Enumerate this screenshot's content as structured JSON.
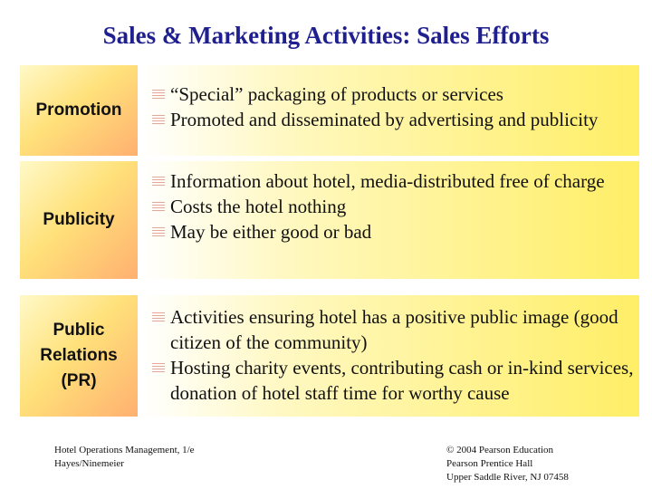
{
  "title": "Sales & Marketing Activities: Sales Efforts",
  "rows": [
    {
      "label": "Promotion",
      "bullets": [
        "“Special” packaging of products or services",
        "Promoted and disseminated by advertising and publicity"
      ]
    },
    {
      "label": "Publicity",
      "bullets": [
        "Information about hotel, media-distributed free of charge",
        "Costs the hotel nothing",
        "May be either good or bad"
      ]
    },
    {
      "label": "Public Relations (PR)",
      "bullets": [
        "Activities ensuring hotel has a positive public image (good citizen of the community)",
        "Hosting charity events, contributing cash or in-kind services, donation of hotel staff time for worthy cause"
      ]
    }
  ],
  "footer": {
    "left": [
      "Hotel Operations Management, 1/e",
      "Hayes/Ninemeier"
    ],
    "right": [
      "© 2004 Pearson Education",
      "Pearson Prentice Hall",
      "Upper Saddle River, NJ 07458"
    ]
  },
  "colors": {
    "title": "#1f1f8f",
    "label_gradient": [
      "#fff9c8",
      "#ffe17a",
      "#ffb070"
    ],
    "content_gradient": [
      "#ffffff",
      "#fff8c0",
      "#ffee66"
    ],
    "bullet_icon": "#e3a89a"
  },
  "icons": {
    "bullet": "striped-bullet-icon"
  }
}
